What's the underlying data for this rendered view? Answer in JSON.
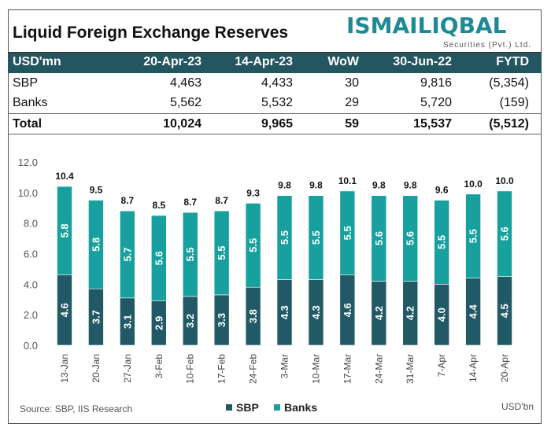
{
  "title": "Liquid Foreign Exchange Reserves",
  "logo": {
    "name": "ISMAILIQBAL",
    "sub": "Securities (Pvt.) Ltd."
  },
  "table": {
    "headers": [
      "USD'mn",
      "20-Apr-23",
      "14-Apr-23",
      "WoW",
      "30-Jun-22",
      "FYTD"
    ],
    "rows": [
      [
        "SBP",
        "4,463",
        "4,433",
        "30",
        "9,816",
        "(5,354)"
      ],
      [
        "Banks",
        "5,562",
        "5,532",
        "29",
        "5,720",
        "(159)"
      ],
      [
        "Total",
        "10,024",
        "9,965",
        "59",
        "15,537",
        "(5,512)"
      ]
    ]
  },
  "chart_data": {
    "type": "bar",
    "stacked": true,
    "categories": [
      "13-Jan",
      "20-Jan",
      "27-Jan",
      "3-Feb",
      "10-Feb",
      "17-Feb",
      "24-Feb",
      "3-Mar",
      "10-Mar",
      "17-Mar",
      "24-Mar",
      "31-Mar",
      "7-Apr",
      "14-Apr",
      "20-Apr"
    ],
    "series": [
      {
        "name": "SBP",
        "color": "#215a66",
        "values": [
          4.6,
          3.7,
          3.1,
          2.9,
          3.2,
          3.3,
          3.8,
          4.3,
          4.3,
          4.6,
          4.2,
          4.2,
          4.0,
          4.4,
          4.5
        ]
      },
      {
        "name": "Banks",
        "color": "#17a09e",
        "values": [
          5.8,
          5.8,
          5.7,
          5.6,
          5.5,
          5.5,
          5.5,
          5.5,
          5.5,
          5.5,
          5.6,
          5.6,
          5.5,
          5.5,
          5.6
        ]
      }
    ],
    "totals": [
      "10.4",
      "9.5",
      "8.7",
      "8.5",
      "8.7",
      "8.7",
      "9.3",
      "9.8",
      "9.8",
      "10.1",
      "9.8",
      "9.8",
      "9.6",
      "10.0",
      "10.0"
    ],
    "yticks": [
      "0.0",
      "2.0",
      "4.0",
      "6.0",
      "8.0",
      "10.0",
      "12.0"
    ],
    "ylim": [
      0,
      12
    ],
    "legend": "bottom-center",
    "source": "Source: SBP, IIS Research",
    "unit": "USD'bn"
  }
}
